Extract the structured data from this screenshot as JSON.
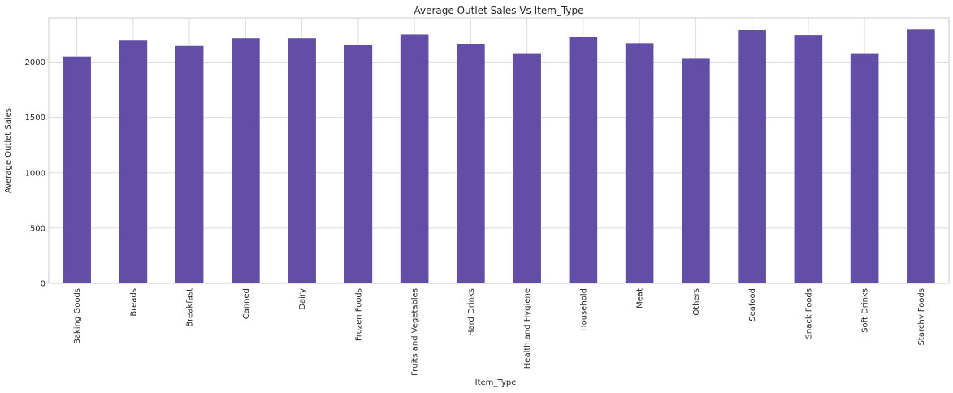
{
  "chart_data": {
    "type": "bar",
    "title": "Average Outlet Sales Vs Item_Type",
    "xlabel": "Item_Type",
    "ylabel": "Average Outlet Sales",
    "categories": [
      "Baking Goods",
      "Breads",
      "Breakfast",
      "Canned",
      "Dairy",
      "Frozen Foods",
      "Fruits and Vegetables",
      "Hard Drinks",
      "Health and Hygiene",
      "Household",
      "Meat",
      "Others",
      "Seafood",
      "Snack Foods",
      "Soft Drinks",
      "Starchy Foods"
    ],
    "values": [
      2050,
      2200,
      2145,
      2215,
      2215,
      2155,
      2250,
      2165,
      2080,
      2230,
      2170,
      2030,
      2290,
      2245,
      2080,
      2295
    ],
    "ylim": [
      0,
      2400
    ],
    "yticks": [
      0,
      500,
      1000,
      1500,
      2000
    ],
    "grid": true,
    "bar_color": "#624ea7"
  }
}
